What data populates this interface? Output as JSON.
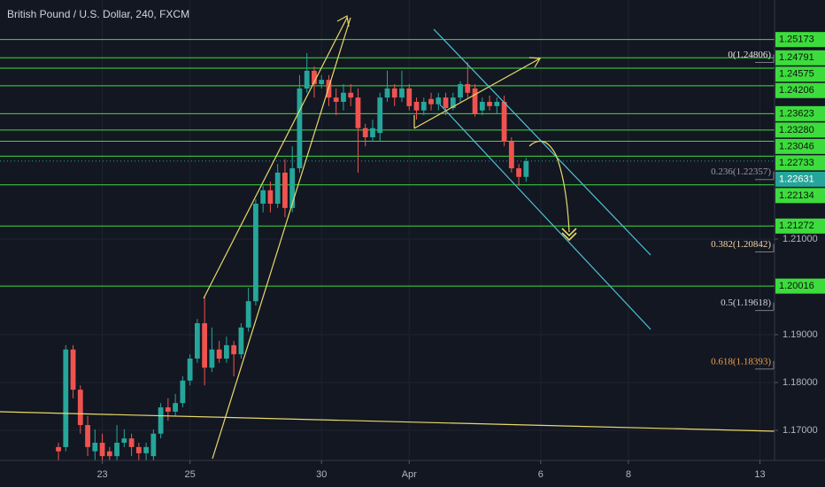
{
  "chart_data": {
    "type": "candlestick",
    "title": "British Pound / U.S. Dollar, 240, FXCM",
    "up_color": "#26a69a",
    "down_color": "#ef5350",
    "level_color": "#3ddc3d",
    "last_color": "#26a69a",
    "grid": true,
    "xlim": [
      -8,
      98
    ],
    "ylim": [
      1.1637,
      1.26
    ],
    "xticks": [
      {
        "value": 6,
        "label": "23"
      },
      {
        "value": 18,
        "label": "25"
      },
      {
        "value": 36,
        "label": "30"
      },
      {
        "value": 48,
        "label": "Apr"
      },
      {
        "value": 66,
        "label": "6"
      },
      {
        "value": 78,
        "label": "8"
      },
      {
        "value": 96,
        "label": "13"
      }
    ],
    "yticks": [
      {
        "value": 1.17,
        "label": "1.17000"
      },
      {
        "value": 1.18,
        "label": "1.18000"
      },
      {
        "value": 1.19,
        "label": "1.19000"
      },
      {
        "value": 1.21,
        "label": "1.21000"
      }
    ],
    "open": [
      1.1665,
      1.1665,
      1.1869,
      1.1785,
      1.1711,
      1.1656,
      1.1674,
      1.1656,
      1.1646,
      1.1674,
      1.1683,
      1.1665,
      1.1652,
      1.1646,
      1.1693,
      1.1748,
      1.1739,
      1.1757,
      1.1804,
      1.185,
      1.1924,
      1.1831,
      1.1869,
      1.185,
      1.1878,
      1.1859,
      1.1915,
      1.197,
      1.2174,
      1.2202,
      1.2174,
      1.2239,
      1.2165,
      1.2248,
      1.2415,
      1.2452,
      1.2424,
      1.2433,
      1.2396,
      1.2387,
      1.2406,
      1.2396,
      1.2332,
      1.2313,
      1.2322,
      1.2396,
      1.2415,
      1.2396,
      1.2415,
      1.2387,
      1.2369,
      1.2393,
      1.2382,
      1.2396,
      1.2374,
      1.2396,
      1.2424,
      1.2415,
      1.2369,
      1.2387,
      1.2378,
      1.2387,
      1.2304,
      1.2248,
      1.223
    ],
    "high": [
      1.1674,
      1.1878,
      1.1878,
      1.1794,
      1.173,
      1.1702,
      1.1693,
      1.1665,
      1.1711,
      1.1702,
      1.1693,
      1.1674,
      1.1674,
      1.1702,
      1.1757,
      1.1767,
      1.1776,
      1.1813,
      1.1859,
      1.1933,
      1.198,
      1.1915,
      1.1887,
      1.1896,
      1.1887,
      1.1924,
      1.1998,
      1.2183,
      1.2211,
      1.222,
      1.2257,
      1.2267,
      1.2294,
      1.2443,
      1.2489,
      1.2461,
      1.2443,
      1.2443,
      1.2415,
      1.2424,
      1.2424,
      1.2415,
      1.2341,
      1.235,
      1.2406,
      1.2452,
      1.2424,
      1.2452,
      1.2424,
      1.2396,
      1.2396,
      1.2406,
      1.2406,
      1.2406,
      1.2406,
      1.243,
      1.247,
      1.2424,
      1.2396,
      1.24,
      1.2396,
      1.24,
      1.2313,
      1.2257,
      1.227
    ],
    "low": [
      1.1637,
      1.1656,
      1.1767,
      1.1693,
      1.1646,
      1.1637,
      1.1637,
      1.1637,
      1.1637,
      1.1665,
      1.1646,
      1.1637,
      1.1637,
      1.1637,
      1.1683,
      1.172,
      1.173,
      1.1748,
      1.1794,
      1.1841,
      1.1794,
      1.1822,
      1.1841,
      1.1841,
      1.1813,
      1.185,
      1.1906,
      1.1961,
      1.2156,
      1.2156,
      1.2165,
      1.2146,
      1.2156,
      1.2239,
      1.2406,
      1.2396,
      1.2415,
      1.2378,
      1.2359,
      1.2369,
      1.2378,
      1.2239,
      1.2294,
      1.2304,
      1.2304,
      1.2387,
      1.2378,
      1.2387,
      1.2369,
      1.235,
      1.2359,
      1.2369,
      1.2369,
      1.2359,
      1.2369,
      1.2387,
      1.2396,
      1.2356,
      1.2359,
      1.2369,
      1.2363,
      1.2294,
      1.2239,
      1.2211,
      1.222
    ],
    "close": [
      1.1656,
      1.1869,
      1.1785,
      1.1711,
      1.1665,
      1.1674,
      1.1646,
      1.1646,
      1.1674,
      1.1683,
      1.1665,
      1.1652,
      1.1665,
      1.1693,
      1.1748,
      1.1739,
      1.1757,
      1.1804,
      1.185,
      1.1924,
      1.1831,
      1.1869,
      1.185,
      1.1878,
      1.1859,
      1.1915,
      1.197,
      1.2174,
      1.2202,
      1.2174,
      1.2239,
      1.2165,
      1.2248,
      1.2415,
      1.2452,
      1.2424,
      1.2433,
      1.2396,
      1.2387,
      1.2406,
      1.2396,
      1.2332,
      1.2313,
      1.2332,
      1.2396,
      1.2415,
      1.2396,
      1.2415,
      1.2378,
      1.2369,
      1.2387,
      1.2382,
      1.2396,
      1.2374,
      1.2396,
      1.2424,
      1.2406,
      1.2363,
      1.2387,
      1.2378,
      1.2387,
      1.2304,
      1.2248,
      1.223,
      1.2263
    ],
    "levels": [
      1.25173,
      1.24791,
      1.24575,
      1.24206,
      1.23623,
      {
        "value": 1.2328,
        "label": "1.23280"
      },
      1.23046,
      1.22733,
      1.22134,
      1.21272,
      1.20016
    ],
    "last_price": 1.22631,
    "fib_levels": [
      {
        "value": 1.24806,
        "label": "0(1.24806)",
        "color": "#e6e6e6"
      },
      {
        "value": 1.22357,
        "label": "0.236(1.22357)",
        "color": "#9598a1"
      },
      {
        "value": 1.20842,
        "label": "0.382(1.20842)",
        "color": "#f3d3a0"
      },
      {
        "value": 1.19618,
        "label": "0.5(1.19618)",
        "color": "#d1d4dc"
      },
      {
        "value": 1.18393,
        "label": "0.618(1.18393)",
        "color": "#f0a04b"
      }
    ]
  }
}
